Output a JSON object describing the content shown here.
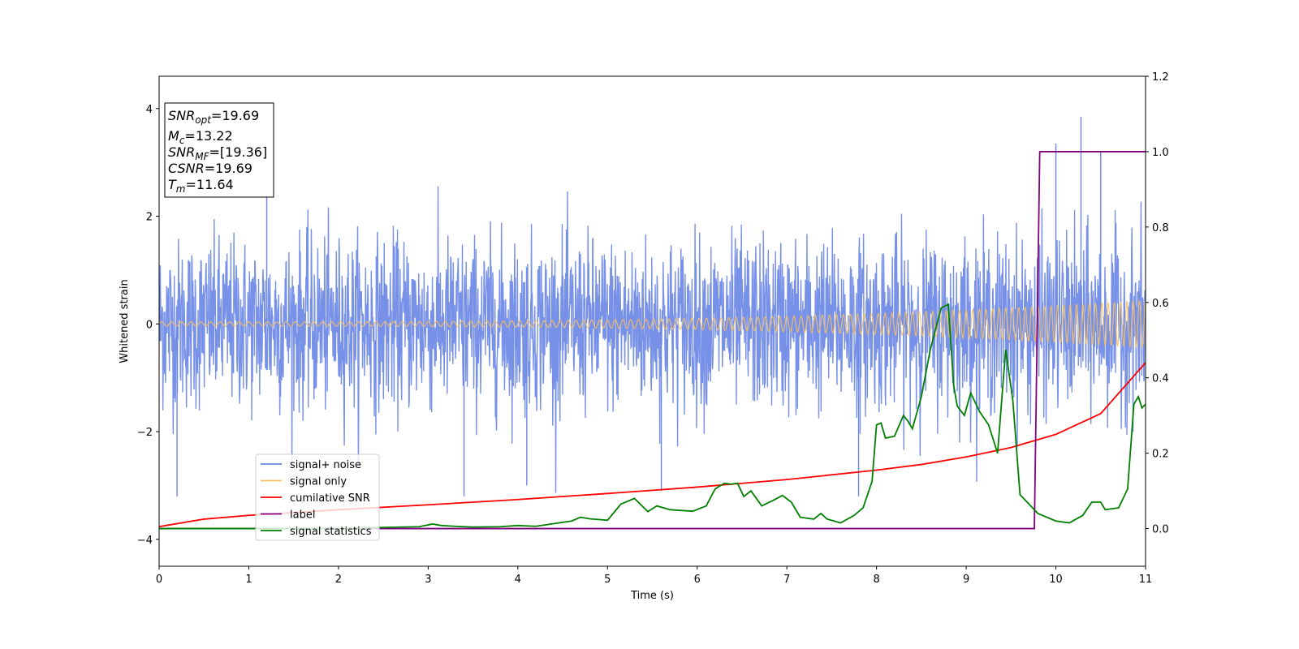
{
  "chart_data": {
    "type": "line",
    "xlabel": "Time (s)",
    "ylabel": "Whitened strain",
    "xlim": [
      0,
      11
    ],
    "ylim": [
      -4.5,
      4.6
    ],
    "y2lim": [
      -0.1,
      1.2
    ],
    "xticks": [
      0,
      1,
      2,
      3,
      4,
      5,
      6,
      7,
      8,
      9,
      10,
      11
    ],
    "yticks": [
      -4,
      -2,
      0,
      2,
      4
    ],
    "y2ticks": [
      0.0,
      0.2,
      0.4,
      0.6,
      0.8,
      1.0,
      1.2
    ],
    "y2ticklabels": [
      "0.0",
      "0.2",
      "0.4",
      "0.6",
      "0.8",
      "1.0",
      "1.2"
    ],
    "legend_position": "lower-left",
    "annotation": {
      "lines": [
        {
          "sym": "SNR",
          "sub": "opt",
          "rest": "=19.69"
        },
        {
          "sym": "M",
          "sub": "c",
          "rest": "=13.22"
        },
        {
          "sym": "SNR",
          "sub": "MF",
          "rest": "=[19.36]"
        },
        {
          "sym": "CSNR",
          "sub": "",
          "rest": "=19.69"
        },
        {
          "sym": "T",
          "sub": "m",
          "rest": "=11.64"
        }
      ]
    },
    "series": [
      {
        "name": "signal+ noise",
        "axis": "left",
        "color": "#6b87e6",
        "description_kind": "noise",
        "envelope": {
          "x": [
            0,
            11
          ],
          "amplitude_typical": 1.4,
          "peaks_max": [
            [
              0.2,
              -3.2
            ],
            [
              1.2,
              3.25
            ],
            [
              3.4,
              -3.2
            ],
            [
              4.1,
              -3.0
            ],
            [
              5.6,
              -3.1
            ],
            [
              7.8,
              -3.2
            ],
            [
              10.0,
              3.35
            ],
            [
              10.28,
              3.85
            ],
            [
              10.5,
              3.2
            ]
          ]
        }
      },
      {
        "name": "signal only",
        "axis": "left",
        "color": "#f5c060",
        "chirp": {
          "amp_start": 0.04,
          "amp_end": 0.45,
          "x": [
            0,
            11
          ]
        }
      },
      {
        "name": "cumilative SNR",
        "axis": "right",
        "color": "#ff0000",
        "x": [
          0,
          0.5,
          1,
          2,
          3,
          4,
          5,
          6,
          7,
          8,
          8.5,
          9,
          9.5,
          10,
          10.5,
          11
        ],
        "y": [
          0.005,
          0.025,
          0.035,
          0.05,
          0.063,
          0.077,
          0.093,
          0.11,
          0.13,
          0.155,
          0.17,
          0.19,
          0.215,
          0.25,
          0.305,
          0.44
        ]
      },
      {
        "name": "label",
        "axis": "right",
        "color": "#800080",
        "x": [
          0,
          9.76,
          9.82,
          11
        ],
        "y": [
          0.0,
          0.0,
          1.0,
          1.0
        ]
      },
      {
        "name": "signal statistics",
        "axis": "right",
        "color": "#008000",
        "x": [
          0,
          1,
          2,
          2.5,
          2.9,
          3.05,
          3.15,
          3.3,
          3.5,
          3.8,
          4.0,
          4.2,
          4.6,
          4.7,
          4.8,
          5.0,
          5.15,
          5.2,
          5.3,
          5.45,
          5.55,
          5.7,
          5.95,
          6.1,
          6.2,
          6.3,
          6.38,
          6.45,
          6.52,
          6.6,
          6.72,
          6.85,
          6.95,
          7.05,
          7.15,
          7.3,
          7.38,
          7.45,
          7.6,
          7.75,
          7.85,
          7.95,
          8.0,
          8.05,
          8.1,
          8.2,
          8.3,
          8.35,
          8.4,
          8.5,
          8.6,
          8.72,
          8.8,
          8.86,
          8.9,
          8.98,
          9.05,
          9.15,
          9.25,
          9.35,
          9.44,
          9.52,
          9.6,
          9.8,
          10.0,
          10.15,
          10.3,
          10.4,
          10.5,
          10.55,
          10.7,
          10.8,
          10.87,
          10.92,
          10.96,
          11.0
        ],
        "y": [
          0.0,
          0.0,
          0.0,
          0.003,
          0.005,
          0.012,
          0.008,
          0.006,
          0.004,
          0.005,
          0.008,
          0.006,
          0.02,
          0.03,
          0.026,
          0.022,
          0.065,
          0.07,
          0.08,
          0.045,
          0.06,
          0.05,
          0.046,
          0.06,
          0.105,
          0.12,
          0.118,
          0.12,
          0.085,
          0.1,
          0.06,
          0.075,
          0.088,
          0.07,
          0.03,
          0.025,
          0.04,
          0.025,
          0.015,
          0.035,
          0.055,
          0.125,
          0.275,
          0.28,
          0.24,
          0.245,
          0.3,
          0.285,
          0.265,
          0.35,
          0.475,
          0.585,
          0.595,
          0.38,
          0.325,
          0.3,
          0.36,
          0.31,
          0.275,
          0.2,
          0.475,
          0.34,
          0.09,
          0.04,
          0.02,
          0.015,
          0.035,
          0.07,
          0.07,
          0.05,
          0.055,
          0.105,
          0.33,
          0.35,
          0.32,
          0.33
        ]
      }
    ]
  }
}
